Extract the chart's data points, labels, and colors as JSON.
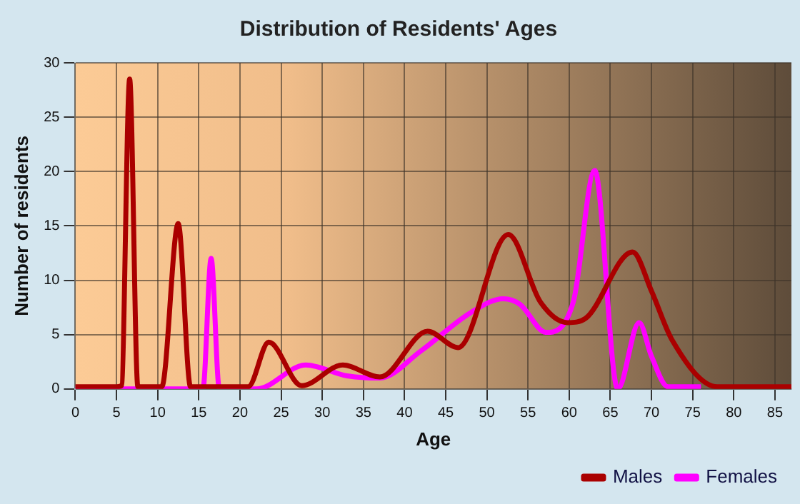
{
  "chart_data": {
    "type": "line",
    "title": "Distribution of Residents' Ages",
    "xlabel": "Age",
    "ylabel": "Number of residents",
    "xlim": [
      0,
      87
    ],
    "xticks": [
      0,
      5,
      10,
      15,
      20,
      25,
      30,
      35,
      40,
      45,
      50,
      55,
      60,
      65,
      70,
      75,
      80,
      85
    ],
    "ylim": [
      0,
      30
    ],
    "yticks": [
      0,
      5,
      10,
      15,
      20,
      25,
      30
    ],
    "grid": true,
    "legend": "bottom right",
    "marker": "none",
    "line_style": "solid",
    "series": [
      {
        "name": "Males",
        "color": "#aa0000",
        "x": [
          0,
          5,
          5.6,
          6.6,
          7.6,
          10.5,
          12.5,
          14,
          21,
          23.5,
          27.5,
          32.5,
          37,
          42.8,
          46.5,
          52.6,
          56.5,
          59.8,
          62,
          67.7,
          70,
          72.5,
          78,
          87
        ],
        "values": [
          0.2,
          0.2,
          0.3,
          28.5,
          0.2,
          0.2,
          15.2,
          0.2,
          0.2,
          4.3,
          0.3,
          2.2,
          1.1,
          5.3,
          3.8,
          14.2,
          8,
          6.1,
          6.5,
          12.6,
          9,
          4.5,
          0.2,
          0.2
        ]
      },
      {
        "name": "Females",
        "color": "#ff00ff",
        "x": [
          0,
          15.5,
          16.5,
          17.5,
          22,
          28,
          33,
          37,
          42,
          48,
          52,
          54,
          57.2,
          60.5,
          63.1,
          65.9,
          68.5,
          70,
          72,
          76
        ],
        "values": [
          0,
          0,
          12,
          0,
          0,
          2.2,
          1.2,
          1,
          3.5,
          7,
          8.3,
          7.8,
          5.2,
          8,
          20.1,
          0,
          6.1,
          3,
          0.2,
          0.2
        ]
      }
    ]
  }
}
